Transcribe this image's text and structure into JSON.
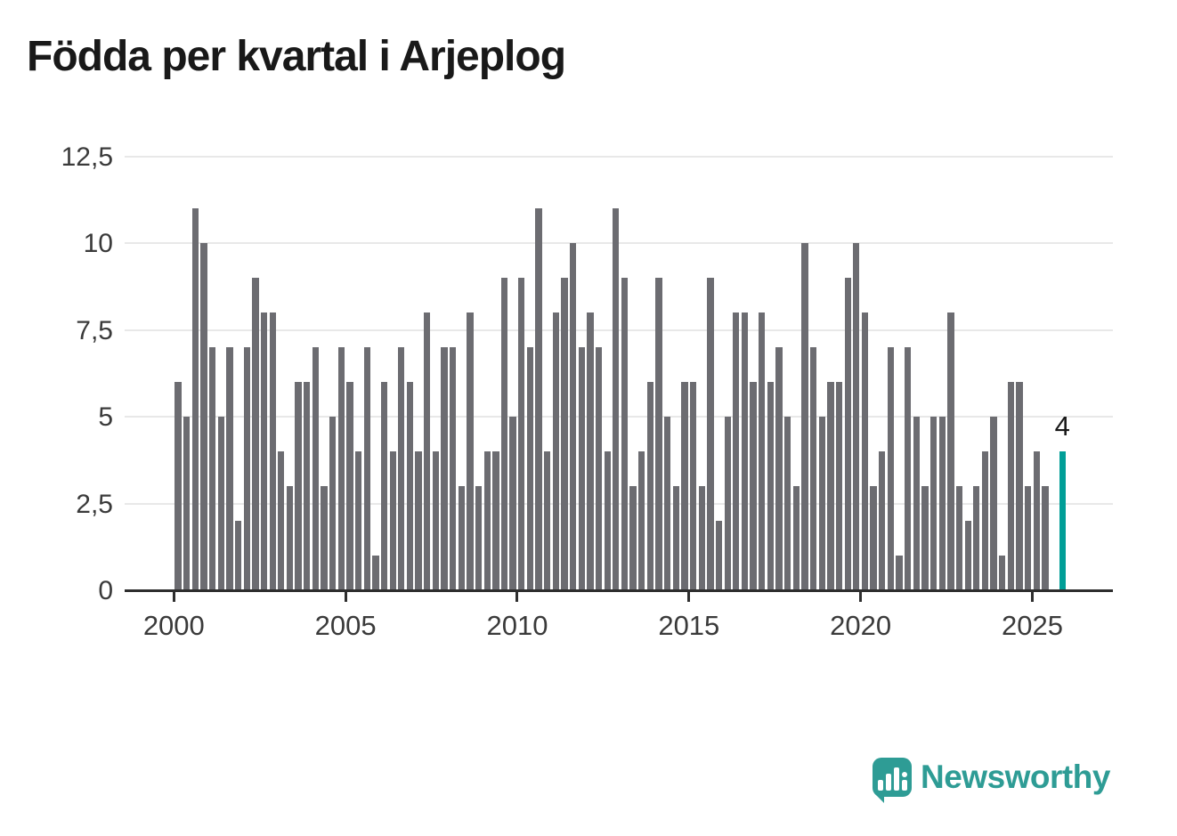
{
  "title": "Födda per kvartal i Arjeplog",
  "chart_data": {
    "type": "bar",
    "title": "Födda per kvartal i Arjeplog",
    "xlabel": "",
    "ylabel": "",
    "start_quarter": "2000-Q1",
    "end_quarter": "2025-Q4",
    "values": [
      6,
      5,
      11,
      10,
      7,
      5,
      7,
      2,
      7,
      9,
      8,
      8,
      4,
      3,
      6,
      6,
      7,
      3,
      5,
      7,
      6,
      4,
      7,
      1,
      6,
      4,
      7,
      6,
      4,
      8,
      4,
      7,
      7,
      3,
      8,
      3,
      4,
      4,
      9,
      5,
      9,
      7,
      11,
      4,
      8,
      9,
      10,
      7,
      8,
      7,
      4,
      11,
      9,
      3,
      4,
      6,
      9,
      5,
      3,
      6,
      6,
      3,
      9,
      2,
      5,
      8,
      8,
      6,
      8,
      6,
      7,
      5,
      3,
      10,
      7,
      5,
      6,
      6,
      9,
      10,
      8,
      3,
      4,
      7,
      1,
      7,
      5,
      3,
      5,
      5,
      8,
      3,
      2,
      3,
      4,
      5,
      1,
      6,
      6,
      3,
      4,
      3,
      0,
      4
    ],
    "highlight_index": 103,
    "highlight_value_label": "4",
    "ylim": [
      0,
      12.5
    ],
    "yticks": [
      "0",
      "2,5",
      "5",
      "7,5",
      "10",
      "12,5"
    ],
    "ytick_values": [
      0,
      2.5,
      5,
      7.5,
      10,
      12.5
    ],
    "xticks": [
      "2000",
      "2005",
      "2010",
      "2015",
      "2020",
      "2025"
    ],
    "xtick_indices": [
      0,
      20,
      40,
      60,
      80,
      100
    ],
    "grid": true,
    "legend": false,
    "bar_color": "#6c6c71",
    "highlight_color": "#009e97"
  },
  "logo": {
    "text": "Newsworthy",
    "color": "#2e9c95",
    "icon": "newsworthy-bars-icon"
  }
}
